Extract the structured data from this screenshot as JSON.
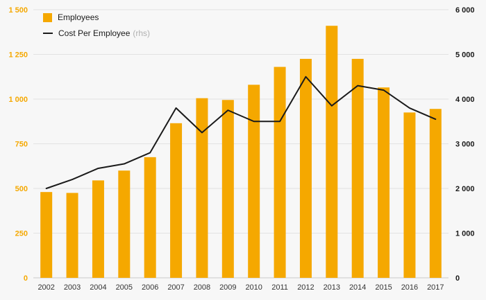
{
  "colors": {
    "bar": "#f5a800",
    "line": "#1a1a1a",
    "grid": "#e2e2e2",
    "baseline": "#c9c9c9",
    "background": "#f7f7f7",
    "x_label": "#333333",
    "rhs_suffix": "#b0b0b0"
  },
  "legend": {
    "employees_label": "Employees",
    "cost_label": "Cost Per Employee",
    "cost_suffix": "(rhs)"
  },
  "chart_data": {
    "type": "bar",
    "subtype": "combo-bar-line",
    "categories": [
      "2002",
      "2003",
      "2004",
      "2005",
      "2006",
      "2007",
      "2008",
      "2009",
      "2010",
      "2011",
      "2012",
      "2013",
      "2014",
      "2015",
      "2016",
      "2017"
    ],
    "series": [
      {
        "name": "Employees",
        "type": "bar",
        "axis": "left",
        "color": "#f5a800",
        "values": [
          480,
          475,
          545,
          600,
          675,
          865,
          1005,
          995,
          1080,
          1180,
          1225,
          1410,
          1225,
          1065,
          925,
          945
        ]
      },
      {
        "name": "Cost Per Employee",
        "suffix": "(rhs)",
        "type": "line",
        "axis": "right",
        "color": "#1a1a1a",
        "values": [
          2000,
          2200,
          2450,
          2550,
          2800,
          3800,
          3250,
          3750,
          3500,
          3500,
          4500,
          3850,
          4300,
          4200,
          3800,
          3550
        ]
      }
    ],
    "left_axis": {
      "min": 0,
      "max": 1500,
      "step": 250,
      "tick_labels": [
        "0",
        "250",
        "500",
        "750",
        "1 000",
        "1 250",
        "1 500"
      ],
      "color": "#f5a800"
    },
    "right_axis": {
      "min": 0,
      "max": 6000,
      "step": 1000,
      "tick_labels": [
        "0",
        "1 000",
        "2 000",
        "3 000",
        "4 000",
        "5 000",
        "6 000"
      ],
      "color": "#1a1a1a"
    },
    "grid": true,
    "legend_position": "top-left",
    "title": "",
    "xlabel": "",
    "ylabel_left": "",
    "ylabel_right": ""
  }
}
